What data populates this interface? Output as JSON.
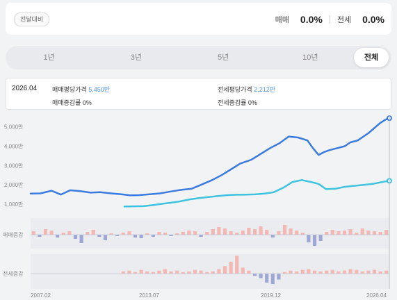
{
  "header": {
    "badge": "전달대비",
    "sale_label": "매매",
    "sale_change": "0.0%",
    "jeonse_label": "전세",
    "jeonse_change": "0.0%"
  },
  "tabs": [
    {
      "label": "1년"
    },
    {
      "label": "3년"
    },
    {
      "label": "5년"
    },
    {
      "label": "10년"
    },
    {
      "label": "전체",
      "active": true
    }
  ],
  "tooltip": {
    "date": "2026.04",
    "sale_price_label": "매매평당가격",
    "sale_price_value": "5,450만",
    "sale_change_label": "매매증감률",
    "sale_change_value": "0%",
    "jeonse_price_label": "전세평당가격",
    "jeonse_price_value": "2,212만",
    "jeonse_change_label": "전세증감률",
    "jeonse_change_value": "0%"
  },
  "colors": {
    "sale_line": "#3b7be0",
    "jeonse_line": "#3fc3df",
    "bar_up": "#f3b8b3",
    "bar_down": "#9fa8d4"
  },
  "chart_data": {
    "type": "line",
    "y_ticks": [
      "1,000만",
      "2,000만",
      "3,000만",
      "4,000만",
      "5,000만"
    ],
    "y_tick_values": [
      1000,
      2000,
      3000,
      4000,
      5000
    ],
    "ylim": [
      500,
      5600
    ],
    "x_ticks": [
      "2007.02",
      "2013.07",
      "2019.12",
      "2026.04"
    ],
    "xlim": [
      2007.08,
      2026.29
    ],
    "series": [
      {
        "key": "sale",
        "x": [
          2007.08,
          2007.6,
          2008.2,
          2008.7,
          2009.2,
          2009.7,
          2010.3,
          2010.8,
          2011.4,
          2011.9,
          2012.4,
          2012.9,
          2013.5,
          2014.0,
          2014.6,
          2015.1,
          2015.7,
          2016.2,
          2016.8,
          2017.3,
          2017.8,
          2018.3,
          2018.9,
          2019.4,
          2019.9,
          2020.4,
          2020.9,
          2021.4,
          2021.9,
          2022.2,
          2022.5,
          2022.8,
          2023.1,
          2023.5,
          2023.9,
          2024.2,
          2024.6,
          2024.9,
          2025.2,
          2025.5,
          2025.8,
          2026.1,
          2026.29
        ],
        "values": [
          1550,
          1560,
          1700,
          1500,
          1720,
          1680,
          1600,
          1620,
          1560,
          1520,
          1460,
          1470,
          1520,
          1560,
          1660,
          1740,
          1800,
          2000,
          2250,
          2500,
          2800,
          3100,
          3300,
          3600,
          3900,
          4150,
          4500,
          4450,
          4300,
          3900,
          3550,
          3700,
          3800,
          3900,
          4000,
          4200,
          4300,
          4500,
          4700,
          4950,
          5200,
          5380,
          5450
        ]
      },
      {
        "key": "jeonse",
        "x": [
          2012.1,
          2012.6,
          2013.1,
          2013.6,
          2014.1,
          2014.6,
          2015.1,
          2015.6,
          2016.1,
          2016.6,
          2017.1,
          2017.6,
          2018.1,
          2018.6,
          2019.1,
          2019.6,
          2020.1,
          2020.6,
          2021.1,
          2021.6,
          2022.1,
          2022.5,
          2022.9,
          2023.4,
          2023.9,
          2024.4,
          2024.9,
          2025.4,
          2025.9,
          2026.29
        ],
        "values": [
          880,
          890,
          900,
          950,
          1020,
          1080,
          1150,
          1250,
          1320,
          1370,
          1420,
          1470,
          1490,
          1500,
          1510,
          1550,
          1620,
          1850,
          2150,
          2250,
          2150,
          2050,
          1780,
          1800,
          1900,
          1950,
          2000,
          2050,
          2150,
          2212
        ]
      }
    ],
    "bar_panels": [
      {
        "label": "매매증감",
        "values": [
          0.5,
          -0.3,
          0.8,
          0.6,
          -0.4,
          0.3,
          0.5,
          -0.6,
          -1.2,
          0.4,
          0.7,
          -0.3,
          -0.8,
          0.2,
          -0.2,
          0.3,
          0.5,
          -0.4,
          -0.5,
          0.2,
          -0.3,
          0.4,
          0.3,
          -0.2,
          0.2,
          0.4,
          0.6,
          0.5,
          -0.3,
          0.4,
          0.8,
          1.1,
          0.9,
          0.5,
          0.3,
          0.6,
          1.0,
          0.8,
          1.2,
          0.7,
          -0.4,
          0.5,
          1.4,
          0.9,
          0.6,
          0.3,
          -1.1,
          -1.6,
          -0.9,
          0.4,
          0.7,
          0.5,
          0.6,
          0.8,
          0.3,
          0.9,
          0.6,
          0.5,
          0.4,
          0.7
        ],
        "ylim": [
          -2,
          2
        ]
      },
      {
        "label": "전세증감",
        "values": [
          0,
          0,
          0,
          0,
          0,
          0,
          0,
          0,
          0,
          0,
          0,
          0,
          0,
          0,
          0,
          0.3,
          0.4,
          0.2,
          0.5,
          0.3,
          0.2,
          0.4,
          0.6,
          0.3,
          0.4,
          0.2,
          0.3,
          0.5,
          0.4,
          0.2,
          0.3,
          0.6,
          1.0,
          1.6,
          2.4,
          0.8,
          0.4,
          -0.3,
          -0.6,
          -1.2,
          -1.4,
          -0.8,
          0.2,
          0.4,
          0.3,
          0.5,
          0.6,
          0.4,
          0.3,
          0.4,
          0.5,
          0.3,
          0.4,
          0.6,
          0.5,
          0.3,
          0.4,
          0.5,
          0.3,
          0.4
        ],
        "ylim": [
          -2,
          2.6
        ]
      }
    ]
  }
}
